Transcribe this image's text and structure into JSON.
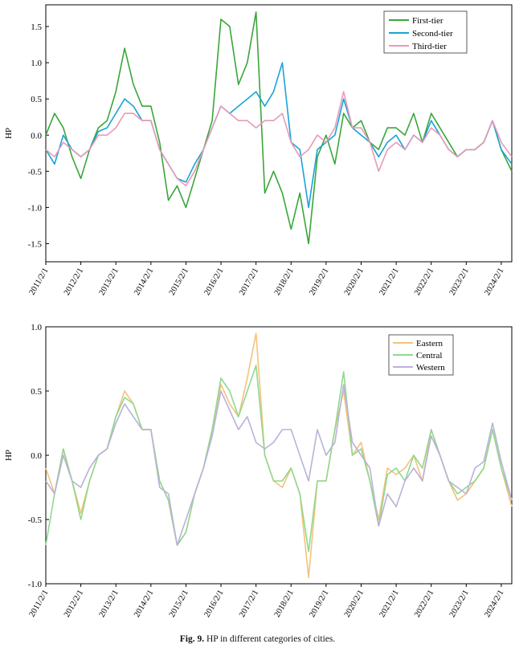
{
  "caption": {
    "label": "Fig. 9.",
    "text": "HP in different categories of cities."
  },
  "chart_data": [
    {
      "type": "line",
      "title": "",
      "xlabel": "",
      "ylabel": "HP",
      "ylim": [
        -1.75,
        1.8
      ],
      "yticks": [
        1.5,
        1.0,
        0.5,
        0.0,
        -0.5,
        -1.0,
        -1.5
      ],
      "ytick_labels": [
        "1.5",
        "1.0",
        "0.5",
        "0.0",
        "-0.5",
        "-1.0",
        "-1.5"
      ],
      "xlim": [
        2011.0,
        2024.3
      ],
      "x_tick_values": [
        2011,
        2012,
        2013,
        2014,
        2015,
        2016,
        2017,
        2018,
        2019,
        2020,
        2021,
        2022,
        2023,
        2024
      ],
      "x_tick_labels": [
        "2011/2/1",
        "2012/2/1",
        "2013/2/1",
        "2014/2/1",
        "2015/2/1",
        "2016/2/1",
        "2017/2/1",
        "2018/2/1",
        "2019/2/1",
        "2020/2/1",
        "2021/2/1",
        "2022/2/1",
        "2023/2/1",
        "2024/2/1"
      ],
      "legend_position": "top-right",
      "x": [
        2011.0,
        2011.25,
        2011.5,
        2011.75,
        2012.0,
        2012.25,
        2012.5,
        2012.75,
        2013.0,
        2013.25,
        2013.5,
        2013.75,
        2014.0,
        2014.25,
        2014.5,
        2014.75,
        2015.0,
        2015.25,
        2015.5,
        2015.75,
        2016.0,
        2016.25,
        2016.5,
        2016.75,
        2017.0,
        2017.25,
        2017.5,
        2017.75,
        2018.0,
        2018.25,
        2018.5,
        2018.75,
        2019.0,
        2019.25,
        2019.5,
        2019.75,
        2020.0,
        2020.25,
        2020.5,
        2020.75,
        2021.0,
        2021.25,
        2021.5,
        2021.75,
        2022.0,
        2022.25,
        2022.5,
        2022.75,
        2023.0,
        2023.25,
        2023.5,
        2023.75,
        2024.0,
        2024.3
      ],
      "series": [
        {
          "name": "First-tier",
          "color": "#3aa63a",
          "values": [
            0.0,
            0.3,
            0.1,
            -0.3,
            -0.6,
            -0.2,
            0.1,
            0.2,
            0.6,
            1.2,
            0.7,
            0.4,
            0.4,
            -0.1,
            -0.9,
            -0.7,
            -1.0,
            -0.6,
            -0.2,
            0.2,
            1.6,
            1.5,
            0.7,
            1.0,
            1.7,
            -0.8,
            -0.5,
            -0.8,
            -1.3,
            -0.8,
            -1.5,
            -0.3,
            0.0,
            -0.4,
            0.3,
            0.1,
            0.2,
            -0.1,
            -0.2,
            0.1,
            0.1,
            0.0,
            0.3,
            -0.1,
            0.3,
            0.1,
            -0.1,
            -0.3,
            -0.2,
            -0.2,
            -0.1,
            0.2,
            -0.2,
            -0.5
          ]
        },
        {
          "name": "Second-tier",
          "color": "#1aa3d6",
          "values": [
            -0.2,
            -0.4,
            0.0,
            -0.2,
            -0.3,
            -0.2,
            0.05,
            0.1,
            0.3,
            0.5,
            0.4,
            0.2,
            0.2,
            -0.2,
            -0.4,
            -0.6,
            -0.65,
            -0.4,
            -0.2,
            0.1,
            0.4,
            0.3,
            0.4,
            0.5,
            0.6,
            0.4,
            0.6,
            1.0,
            -0.1,
            -0.2,
            -1.0,
            -0.2,
            -0.1,
            0.0,
            0.5,
            0.1,
            0.0,
            -0.1,
            -0.3,
            -0.1,
            0.0,
            -0.2,
            0.0,
            -0.1,
            0.2,
            0.0,
            -0.2,
            -0.3,
            -0.2,
            -0.2,
            -0.1,
            0.2,
            -0.2,
            -0.4
          ]
        },
        {
          "name": "Third-tier",
          "color": "#e89ab8",
          "values": [
            -0.2,
            -0.3,
            -0.1,
            -0.2,
            -0.3,
            -0.2,
            0.0,
            0.0,
            0.1,
            0.3,
            0.3,
            0.2,
            0.2,
            -0.2,
            -0.4,
            -0.6,
            -0.7,
            -0.5,
            -0.2,
            0.1,
            0.4,
            0.3,
            0.2,
            0.2,
            0.1,
            0.2,
            0.2,
            0.3,
            -0.1,
            -0.3,
            -0.2,
            0.0,
            -0.1,
            0.1,
            0.6,
            0.1,
            0.1,
            -0.1,
            -0.5,
            -0.2,
            -0.1,
            -0.2,
            0.0,
            -0.1,
            0.1,
            0.0,
            -0.2,
            -0.3,
            -0.2,
            -0.2,
            -0.1,
            0.2,
            -0.1,
            -0.3
          ]
        }
      ]
    },
    {
      "type": "line",
      "title": "",
      "xlabel": "",
      "ylabel": "HP",
      "ylim": [
        -1.0,
        1.0
      ],
      "yticks": [
        1.0,
        0.5,
        0.0,
        -0.5,
        -1.0
      ],
      "ytick_labels": [
        "1.0",
        "0.5",
        "0.0",
        "-0.5",
        "-1.0"
      ],
      "xlim": [
        2011.0,
        2024.3
      ],
      "x_tick_values": [
        2011,
        2012,
        2013,
        2014,
        2015,
        2016,
        2017,
        2018,
        2019,
        2020,
        2021,
        2022,
        2023,
        2024
      ],
      "x_tick_labels": [
        "2011/2/1",
        "2012/2/1",
        "2013/2/1",
        "2014/2/1",
        "2015/2/1",
        "2016/2/1",
        "2017/2/1",
        "2018/2/1",
        "2019/2/1",
        "2020/2/1",
        "2021/2/1",
        "2022/2/1",
        "2023/2/1",
        "2024/2/1"
      ],
      "legend_position": "top-right",
      "x": [
        2011.0,
        2011.25,
        2011.5,
        2011.75,
        2012.0,
        2012.25,
        2012.5,
        2012.75,
        2013.0,
        2013.25,
        2013.5,
        2013.75,
        2014.0,
        2014.25,
        2014.5,
        2014.75,
        2015.0,
        2015.25,
        2015.5,
        2015.75,
        2016.0,
        2016.25,
        2016.5,
        2016.75,
        2017.0,
        2017.25,
        2017.5,
        2017.75,
        2018.0,
        2018.25,
        2018.5,
        2018.75,
        2019.0,
        2019.25,
        2019.5,
        2019.75,
        2020.0,
        2020.25,
        2020.5,
        2020.75,
        2021.0,
        2021.25,
        2021.5,
        2021.75,
        2022.0,
        2022.25,
        2022.5,
        2022.75,
        2023.0,
        2023.25,
        2023.5,
        2023.75,
        2024.0,
        2024.3
      ],
      "series": [
        {
          "name": "Eastern",
          "color": "#f5c27a",
          "values": [
            -0.1,
            -0.3,
            0.05,
            -0.2,
            -0.45,
            -0.2,
            0.0,
            0.05,
            0.3,
            0.5,
            0.4,
            0.2,
            0.2,
            -0.2,
            -0.35,
            -0.7,
            -0.6,
            -0.3,
            -0.1,
            0.2,
            0.55,
            0.4,
            0.3,
            0.6,
            0.95,
            0.0,
            -0.2,
            -0.25,
            -0.1,
            -0.3,
            -0.95,
            -0.2,
            -0.2,
            0.2,
            0.5,
            0.0,
            0.1,
            -0.2,
            -0.5,
            -0.1,
            -0.15,
            -0.1,
            0.0,
            -0.2,
            0.2,
            0.0,
            -0.2,
            -0.35,
            -0.3,
            -0.2,
            -0.1,
            0.2,
            -0.1,
            -0.4
          ]
        },
        {
          "name": "Central",
          "color": "#8fd98f",
          "values": [
            -0.7,
            -0.3,
            0.05,
            -0.2,
            -0.5,
            -0.2,
            0.0,
            0.05,
            0.3,
            0.45,
            0.4,
            0.2,
            0.2,
            -0.2,
            -0.35,
            -0.7,
            -0.6,
            -0.3,
            -0.1,
            0.2,
            0.6,
            0.5,
            0.3,
            0.5,
            0.7,
            0.0,
            -0.2,
            -0.2,
            -0.1,
            -0.3,
            -0.75,
            -0.2,
            -0.2,
            0.2,
            0.65,
            0.0,
            0.05,
            -0.2,
            -0.55,
            -0.15,
            -0.1,
            -0.2,
            0.0,
            -0.1,
            0.2,
            0.0,
            -0.2,
            -0.3,
            -0.25,
            -0.2,
            -0.1,
            0.2,
            -0.1,
            -0.35
          ]
        },
        {
          "name": "Western",
          "color": "#b9b2d9",
          "values": [
            -0.2,
            -0.3,
            0.0,
            -0.2,
            -0.25,
            -0.1,
            0.0,
            0.05,
            0.25,
            0.4,
            0.3,
            0.2,
            0.2,
            -0.25,
            -0.3,
            -0.7,
            -0.5,
            -0.3,
            -0.1,
            0.15,
            0.5,
            0.35,
            0.2,
            0.3,
            0.1,
            0.05,
            0.1,
            0.2,
            0.2,
            0.0,
            -0.2,
            0.2,
            0.0,
            0.1,
            0.55,
            0.1,
            0.0,
            -0.1,
            -0.55,
            -0.3,
            -0.4,
            -0.2,
            -0.1,
            -0.2,
            0.15,
            0.0,
            -0.2,
            -0.25,
            -0.3,
            -0.1,
            -0.05,
            0.25,
            -0.05,
            -0.35
          ]
        }
      ]
    }
  ]
}
